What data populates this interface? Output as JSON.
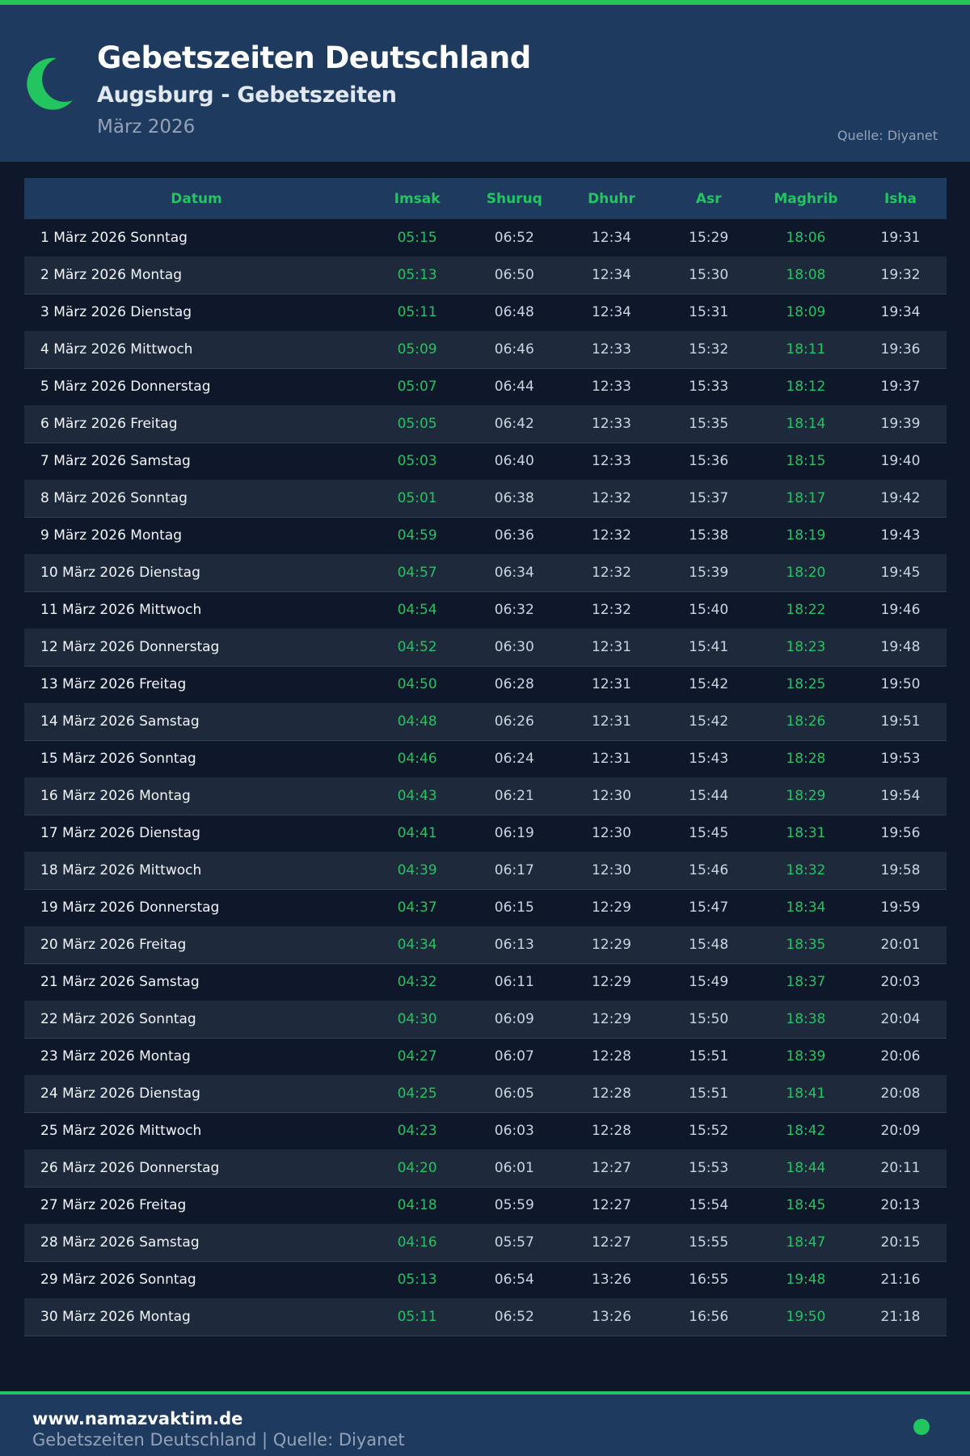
{
  "colors": {
    "accent": "#22c55e",
    "header_bg": "#1e3a5f",
    "page_bg": "#0f172a"
  },
  "header": {
    "icon": "crescent-moon-icon",
    "title": "Gebetszeiten Deutschland",
    "subtitle": "Augsburg - Gebetszeiten",
    "month": "März 2026",
    "source": "Quelle: Diyanet"
  },
  "table": {
    "columns": [
      "Datum",
      "Imsak",
      "Shuruq",
      "Dhuhr",
      "Asr",
      "Maghrib",
      "Isha"
    ],
    "rows": [
      [
        "1 März 2026 Sonntag",
        "05:15",
        "06:52",
        "12:34",
        "15:29",
        "18:06",
        "19:31"
      ],
      [
        "2 März 2026 Montag",
        "05:13",
        "06:50",
        "12:34",
        "15:30",
        "18:08",
        "19:32"
      ],
      [
        "3 März 2026 Dienstag",
        "05:11",
        "06:48",
        "12:34",
        "15:31",
        "18:09",
        "19:34"
      ],
      [
        "4 März 2026 Mittwoch",
        "05:09",
        "06:46",
        "12:33",
        "15:32",
        "18:11",
        "19:36"
      ],
      [
        "5 März 2026 Donnerstag",
        "05:07",
        "06:44",
        "12:33",
        "15:33",
        "18:12",
        "19:37"
      ],
      [
        "6 März 2026 Freitag",
        "05:05",
        "06:42",
        "12:33",
        "15:35",
        "18:14",
        "19:39"
      ],
      [
        "7 März 2026 Samstag",
        "05:03",
        "06:40",
        "12:33",
        "15:36",
        "18:15",
        "19:40"
      ],
      [
        "8 März 2026 Sonntag",
        "05:01",
        "06:38",
        "12:32",
        "15:37",
        "18:17",
        "19:42"
      ],
      [
        "9 März 2026 Montag",
        "04:59",
        "06:36",
        "12:32",
        "15:38",
        "18:19",
        "19:43"
      ],
      [
        "10 März 2026 Dienstag",
        "04:57",
        "06:34",
        "12:32",
        "15:39",
        "18:20",
        "19:45"
      ],
      [
        "11 März 2026 Mittwoch",
        "04:54",
        "06:32",
        "12:32",
        "15:40",
        "18:22",
        "19:46"
      ],
      [
        "12 März 2026 Donnerstag",
        "04:52",
        "06:30",
        "12:31",
        "15:41",
        "18:23",
        "19:48"
      ],
      [
        "13 März 2026 Freitag",
        "04:50",
        "06:28",
        "12:31",
        "15:42",
        "18:25",
        "19:50"
      ],
      [
        "14 März 2026 Samstag",
        "04:48",
        "06:26",
        "12:31",
        "15:42",
        "18:26",
        "19:51"
      ],
      [
        "15 März 2026 Sonntag",
        "04:46",
        "06:24",
        "12:31",
        "15:43",
        "18:28",
        "19:53"
      ],
      [
        "16 März 2026 Montag",
        "04:43",
        "06:21",
        "12:30",
        "15:44",
        "18:29",
        "19:54"
      ],
      [
        "17 März 2026 Dienstag",
        "04:41",
        "06:19",
        "12:30",
        "15:45",
        "18:31",
        "19:56"
      ],
      [
        "18 März 2026 Mittwoch",
        "04:39",
        "06:17",
        "12:30",
        "15:46",
        "18:32",
        "19:58"
      ],
      [
        "19 März 2026 Donnerstag",
        "04:37",
        "06:15",
        "12:29",
        "15:47",
        "18:34",
        "19:59"
      ],
      [
        "20 März 2026 Freitag",
        "04:34",
        "06:13",
        "12:29",
        "15:48",
        "18:35",
        "20:01"
      ],
      [
        "21 März 2026 Samstag",
        "04:32",
        "06:11",
        "12:29",
        "15:49",
        "18:37",
        "20:03"
      ],
      [
        "22 März 2026 Sonntag",
        "04:30",
        "06:09",
        "12:29",
        "15:50",
        "18:38",
        "20:04"
      ],
      [
        "23 März 2026 Montag",
        "04:27",
        "06:07",
        "12:28",
        "15:51",
        "18:39",
        "20:06"
      ],
      [
        "24 März 2026 Dienstag",
        "04:25",
        "06:05",
        "12:28",
        "15:51",
        "18:41",
        "20:08"
      ],
      [
        "25 März 2026 Mittwoch",
        "04:23",
        "06:03",
        "12:28",
        "15:52",
        "18:42",
        "20:09"
      ],
      [
        "26 März 2026 Donnerstag",
        "04:20",
        "06:01",
        "12:27",
        "15:53",
        "18:44",
        "20:11"
      ],
      [
        "27 März 2026 Freitag",
        "04:18",
        "05:59",
        "12:27",
        "15:54",
        "18:45",
        "20:13"
      ],
      [
        "28 März 2026 Samstag",
        "04:16",
        "05:57",
        "12:27",
        "15:55",
        "18:47",
        "20:15"
      ],
      [
        "29 März 2026 Sonntag",
        "05:13",
        "06:54",
        "13:26",
        "16:55",
        "19:48",
        "21:16"
      ],
      [
        "30 März 2026 Montag",
        "05:11",
        "06:52",
        "13:26",
        "16:56",
        "19:50",
        "21:18"
      ]
    ]
  },
  "footer": {
    "site": "www.namazvaktim.de",
    "text": "Gebetszeiten Deutschland | Quelle: Diyanet"
  }
}
